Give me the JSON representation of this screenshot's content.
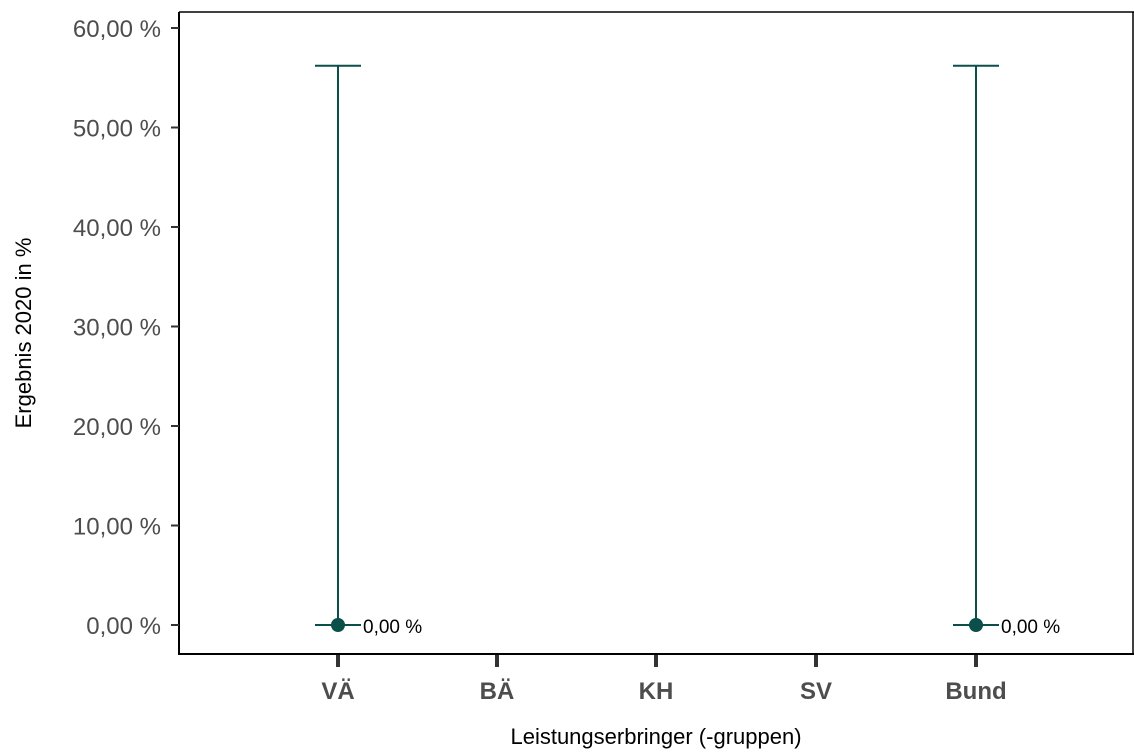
{
  "chart_data": {
    "type": "scatter",
    "xlabel": "Leistungserbringer (-gruppen)",
    "ylabel": "Ergebnis 2020 in %",
    "categories": [
      "VÄ",
      "BÄ",
      "KH",
      "SV",
      "Bund"
    ],
    "ylim": [
      0,
      60
    ],
    "yticks": [
      0,
      10,
      20,
      30,
      40,
      50,
      60
    ],
    "ytick_labels": [
      "0,00 %",
      "10,00 %",
      "20,00 %",
      "30,00 %",
      "40,00 %",
      "50,00 %",
      "60,00 %"
    ],
    "grid": false,
    "series": [
      {
        "points": [
          {
            "category": "VÄ",
            "value": 0,
            "ci_low": 0,
            "ci_high": 56.2,
            "label": "0,00 %"
          },
          {
            "category": "Bund",
            "value": 0,
            "ci_low": 0,
            "ci_high": 56.2,
            "label": "0,00 %"
          }
        ]
      }
    ],
    "colors": {
      "series": "#0b4f4a",
      "axis": "#000000",
      "tick": "#333333",
      "tick_label": "#4d4d4d"
    }
  }
}
